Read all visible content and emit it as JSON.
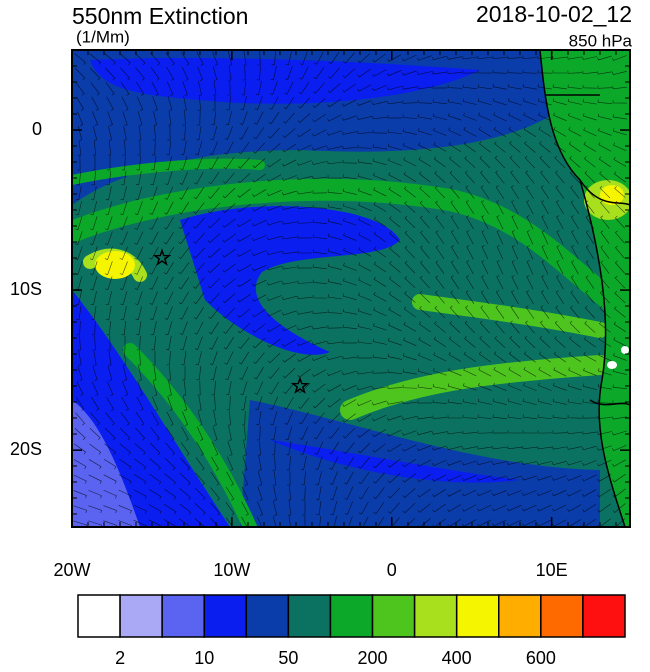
{
  "header": {
    "title": "550nm Extinction",
    "units": "(1/Mm)",
    "datetime": "2018-10-02_12",
    "level": "850 hPa"
  },
  "map": {
    "xlim": [
      -20,
      14.9
    ],
    "ylim": [
      -24.8,
      5
    ],
    "xticks": [
      {
        "value": -20,
        "label": "20W"
      },
      {
        "value": -10,
        "label": "10W"
      },
      0,
      {
        "value": 10,
        "label": "10E"
      }
    ],
    "yticks": [
      0,
      {
        "value": -10,
        "label": "10S"
      },
      {
        "value": -20,
        "label": "20S"
      }
    ]
  },
  "colorbar": {
    "colors": [
      "#ffffff",
      "#a9a9f5",
      "#5a64f0",
      "#0a1ef0",
      "#0a3caa",
      "#0b7262",
      "#0ca82a",
      "#4ec51e",
      "#a8e01e",
      "#f5f500",
      "#ffae00",
      "#ff6a00",
      "#ff1010"
    ],
    "labels": [
      2,
      10,
      50,
      200,
      400,
      600
    ]
  }
}
